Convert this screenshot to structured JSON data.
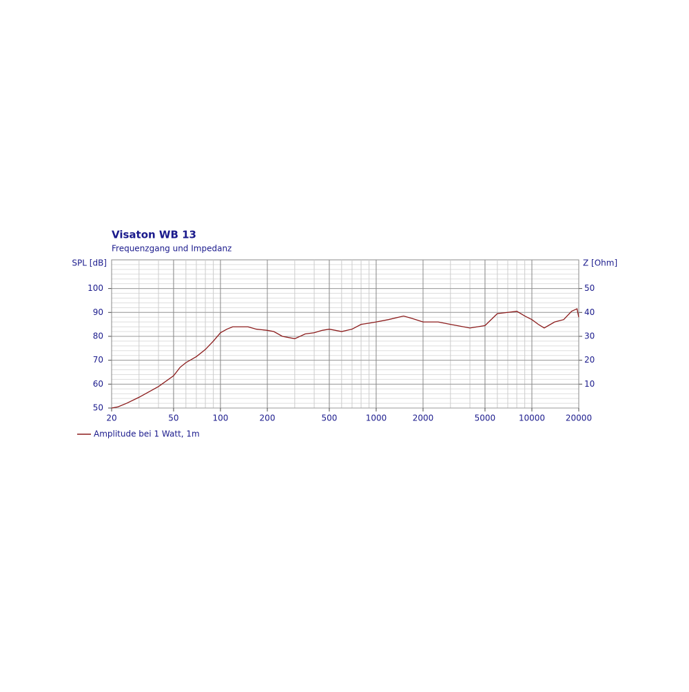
{
  "chart_data": {
    "type": "line",
    "title": "Visaton WB 13",
    "subtitle": "Frequenzgang und Impedanz",
    "y_label": "SPL [dB]",
    "y2_label": "Z [Ohm]",
    "x": [
      20,
      22,
      25,
      30,
      40,
      50,
      55,
      60,
      70,
      80,
      90,
      100,
      110,
      120,
      150,
      170,
      200,
      220,
      250,
      300,
      350,
      400,
      450,
      500,
      600,
      700,
      800,
      900,
      1000,
      1200,
      1500,
      1700,
      2000,
      2500,
      3000,
      4000,
      5000,
      6000,
      7000,
      8000,
      9000,
      10000,
      11000,
      12000,
      14000,
      16000,
      18000,
      19500,
      20000
    ],
    "series": [
      {
        "name": "Amplitude bei 1 Watt, 1m",
        "color": "#8b1a1a",
        "values": [
          50,
          50.5,
          52,
          54.5,
          59,
          63.5,
          67,
          69,
          71.5,
          74.5,
          78,
          81.5,
          83,
          84,
          84,
          83,
          82.5,
          82,
          80,
          79,
          81,
          81.5,
          82.5,
          83,
          82,
          83,
          85,
          85.5,
          86,
          87,
          88.5,
          87.5,
          86,
          86,
          85,
          83.5,
          84.5,
          89.5,
          90,
          90.5,
          88.5,
          87,
          85,
          83.5,
          86,
          87,
          90.5,
          91.5,
          88
        ]
      }
    ],
    "xlim": [
      20,
      20000
    ],
    "x_log": true,
    "xticks": [
      20,
      50,
      100,
      200,
      500,
      1000,
      2000,
      5000,
      10000,
      20000
    ],
    "ylim": [
      50,
      112
    ],
    "yticks": [
      50,
      60,
      70,
      80,
      90,
      100
    ],
    "y2lim": [
      0,
      62
    ],
    "y2ticks": [
      10,
      20,
      30,
      40,
      50
    ],
    "grid": true,
    "legend": "bottom-left",
    "text_color": "#1a1a8c"
  }
}
